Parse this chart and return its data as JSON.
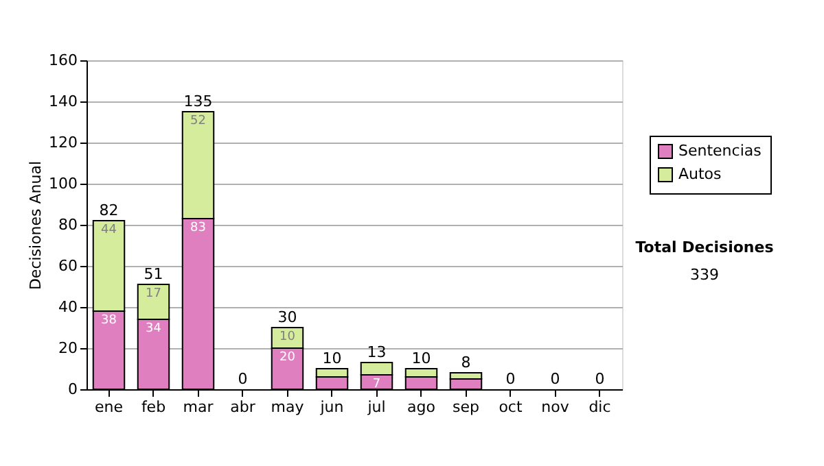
{
  "chart_data": {
    "type": "bar",
    "stacked": true,
    "ylabel": "Decisiones Anual",
    "categories": [
      "ene",
      "feb",
      "mar",
      "abr",
      "may",
      "jun",
      "jul",
      "ago",
      "sep",
      "oct",
      "nov",
      "dic"
    ],
    "series": [
      {
        "name": "Sentencias",
        "color": "#e07fc0",
        "values": [
          38,
          34,
          83,
          0,
          20,
          6,
          7,
          6,
          5,
          0,
          0,
          0
        ],
        "value_labels": [
          "38",
          "34",
          "83",
          null,
          "20",
          null,
          "7",
          null,
          null,
          null,
          null,
          null
        ]
      },
      {
        "name": "Autos",
        "color": "#d4ec9c",
        "values": [
          44,
          17,
          52,
          0,
          10,
          4,
          6,
          4,
          3,
          0,
          0,
          0
        ],
        "value_labels": [
          "44",
          "17",
          "52",
          null,
          "10",
          null,
          null,
          null,
          null,
          null,
          null,
          null
        ]
      }
    ],
    "totals": [
      "82",
      "51",
      "135",
      "0",
      "30",
      "10",
      "13",
      "10",
      "8",
      "0",
      "0",
      "0"
    ],
    "ylim": [
      0,
      160
    ],
    "yticks": [
      0,
      20,
      40,
      60,
      80,
      100,
      120,
      140,
      160
    ],
    "grid": "y",
    "legend": "right",
    "annotations": [
      "Total Decisiones",
      "339"
    ]
  }
}
